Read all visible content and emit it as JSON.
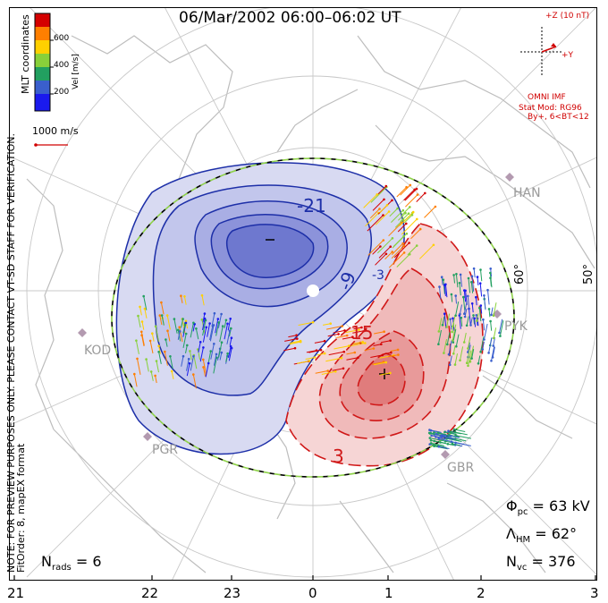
{
  "title": "06/Mar/2002 06:00–06:02 UT",
  "colorbar": {
    "label": "Vel [m/s]",
    "ticks": [
      "600",
      "400",
      "200"
    ],
    "colors": [
      "#d40000",
      "#ff7f00",
      "#ffd000",
      "#88d03a",
      "#22a060",
      "#3a5fcd",
      "#1a1aee"
    ]
  },
  "mlt_coordinates": "MLT coordinates",
  "notes": {
    "preview": "NOTE: FOR PREVIEW PURPOSES ONLY. PLEASE CONTACT VT-SD STAFF FOR VERIFICATION.",
    "fit_order": "FitOrder: 8, mapEX format"
  },
  "scale_vector": "1000 m/s",
  "imf": {
    "z_label": "+Z (10 nT)",
    "y_label": "+Y",
    "source": "OMNI IMF",
    "stat_mod": "Stat Mod: RG96",
    "condition": "By+, 6<BT<12"
  },
  "latitude_labels": [
    "60°",
    "50°"
  ],
  "stations": [
    "HAN",
    "PYK",
    "KOD",
    "PGR",
    "GBR"
  ],
  "contour_labels": {
    "neg21": "-21",
    "neg9": "-9",
    "neg3": "-3",
    "pos3": "3",
    "pos15": "15"
  },
  "stats": {
    "phi_symbol": "Φ",
    "phi_sub": "pc",
    "phi_value": "= 63 kV",
    "lambda_symbol": "Λ",
    "lambda_sub": "HM",
    "lambda_value": "= 62°",
    "nvc_symbol": "N",
    "nvc_sub": "vc",
    "nvc_value": "= 376",
    "nrads_symbol": "N",
    "nrads_sub": "rads",
    "nrads_value": "= 6"
  },
  "mlt_hours": [
    "21",
    "22",
    "23",
    "0",
    "1",
    "2",
    "3"
  ]
}
